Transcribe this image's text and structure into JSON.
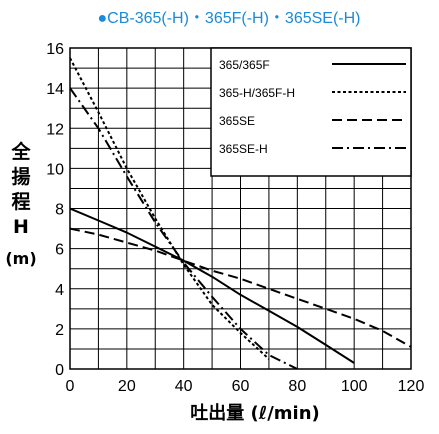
{
  "chart_data": {
    "type": "line",
    "title": "●CB-365(-H)・365F(-H)・365SE(-H)",
    "title_color": "#1a8bd8",
    "ylabel_chars": [
      "全",
      "揚",
      "程",
      "H",
      "(m)"
    ],
    "xlabel": "吐出量 (ℓ/min)",
    "xlim": [
      0,
      120
    ],
    "ylim": [
      0,
      16
    ],
    "xticks": [
      0,
      20,
      40,
      60,
      80,
      100,
      120
    ],
    "yticks": [
      0,
      2,
      4,
      6,
      8,
      10,
      12,
      14,
      16
    ],
    "grid": true,
    "grid_step_x": 10,
    "grid_step_y": 1,
    "legend_position": "top-right",
    "series": [
      {
        "name": "365/365F",
        "style": "solid",
        "x": [
          0,
          10,
          20,
          30,
          40,
          50,
          60,
          70,
          80,
          90,
          100
        ],
        "y": [
          8.0,
          7.4,
          6.8,
          6.1,
          5.4,
          4.6,
          3.7,
          2.9,
          2.1,
          1.2,
          0.3
        ]
      },
      {
        "name": "365-H/365F-H",
        "style": "dotted",
        "x": [
          0,
          10,
          20,
          30,
          40,
          50,
          60,
          70
        ],
        "y": [
          15.5,
          12.8,
          10.0,
          7.5,
          5.2,
          3.2,
          1.8,
          0.5
        ]
      },
      {
        "name": "365SE",
        "style": "dashed",
        "x": [
          0,
          10,
          20,
          30,
          40,
          50,
          60,
          70,
          80,
          90,
          100,
          110,
          120
        ],
        "y": [
          7.0,
          6.7,
          6.3,
          5.9,
          5.4,
          4.9,
          4.5,
          4.0,
          3.5,
          3.0,
          2.5,
          1.9,
          1.1
        ]
      },
      {
        "name": "365SE-H",
        "style": "dashdot",
        "x": [
          0,
          10,
          20,
          30,
          40,
          50,
          60,
          70,
          80
        ],
        "y": [
          14.0,
          12.0,
          9.6,
          7.3,
          5.3,
          3.6,
          2.0,
          0.7,
          0.0
        ]
      }
    ]
  }
}
